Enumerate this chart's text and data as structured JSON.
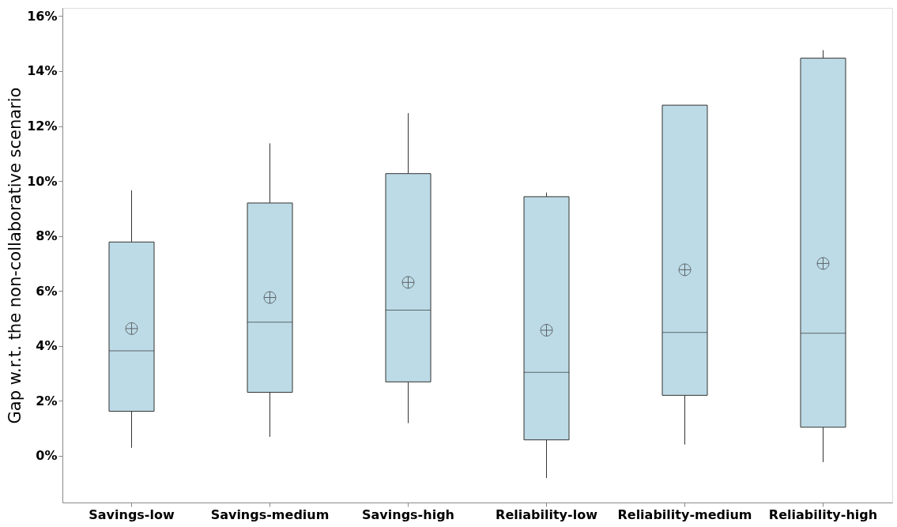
{
  "chart_data": {
    "type": "box",
    "ylabel": "Gap w.r.t. the non-collaborative scenario",
    "categories": [
      "Savings-low",
      "Savings-medium",
      "Savings-high",
      "Reliability-low",
      "Reliability-medium",
      "Reliability-high"
    ],
    "color": "#bddbe6",
    "boxes": [
      {
        "low": 0.29,
        "q1": 1.62,
        "median": 3.82,
        "q3": 7.78,
        "high": 9.66,
        "mean": 4.63
      },
      {
        "low": 0.69,
        "q1": 2.31,
        "median": 4.86,
        "q3": 9.2,
        "high": 11.37,
        "mean": 5.76
      },
      {
        "low": 1.19,
        "q1": 2.69,
        "median": 5.3,
        "q3": 10.27,
        "high": 12.47,
        "mean": 6.31
      },
      {
        "low": -0.81,
        "q1": 0.58,
        "median": 3.04,
        "q3": 9.43,
        "high": 9.58,
        "mean": 4.57
      },
      {
        "low": 0.41,
        "q1": 2.2,
        "median": 4.49,
        "q3": 12.76,
        "high": 12.76,
        "mean": 6.77
      },
      {
        "low": -0.23,
        "q1": 1.04,
        "median": 4.46,
        "q3": 14.47,
        "high": 14.76,
        "mean": 7.0
      }
    ],
    "ylim": [
      -1.7,
      16.3
    ],
    "yticks": [
      {
        "value": 0,
        "label": "0%"
      },
      {
        "value": 2,
        "label": "2%"
      },
      {
        "value": 4,
        "label": "4%"
      },
      {
        "value": 6,
        "label": "6%"
      },
      {
        "value": 8,
        "label": "8%"
      },
      {
        "value": 10,
        "label": "10%"
      },
      {
        "value": 12,
        "label": "12%"
      },
      {
        "value": 14,
        "label": "14%"
      },
      {
        "value": 16,
        "label": "16%"
      }
    ],
    "grid": false
  }
}
